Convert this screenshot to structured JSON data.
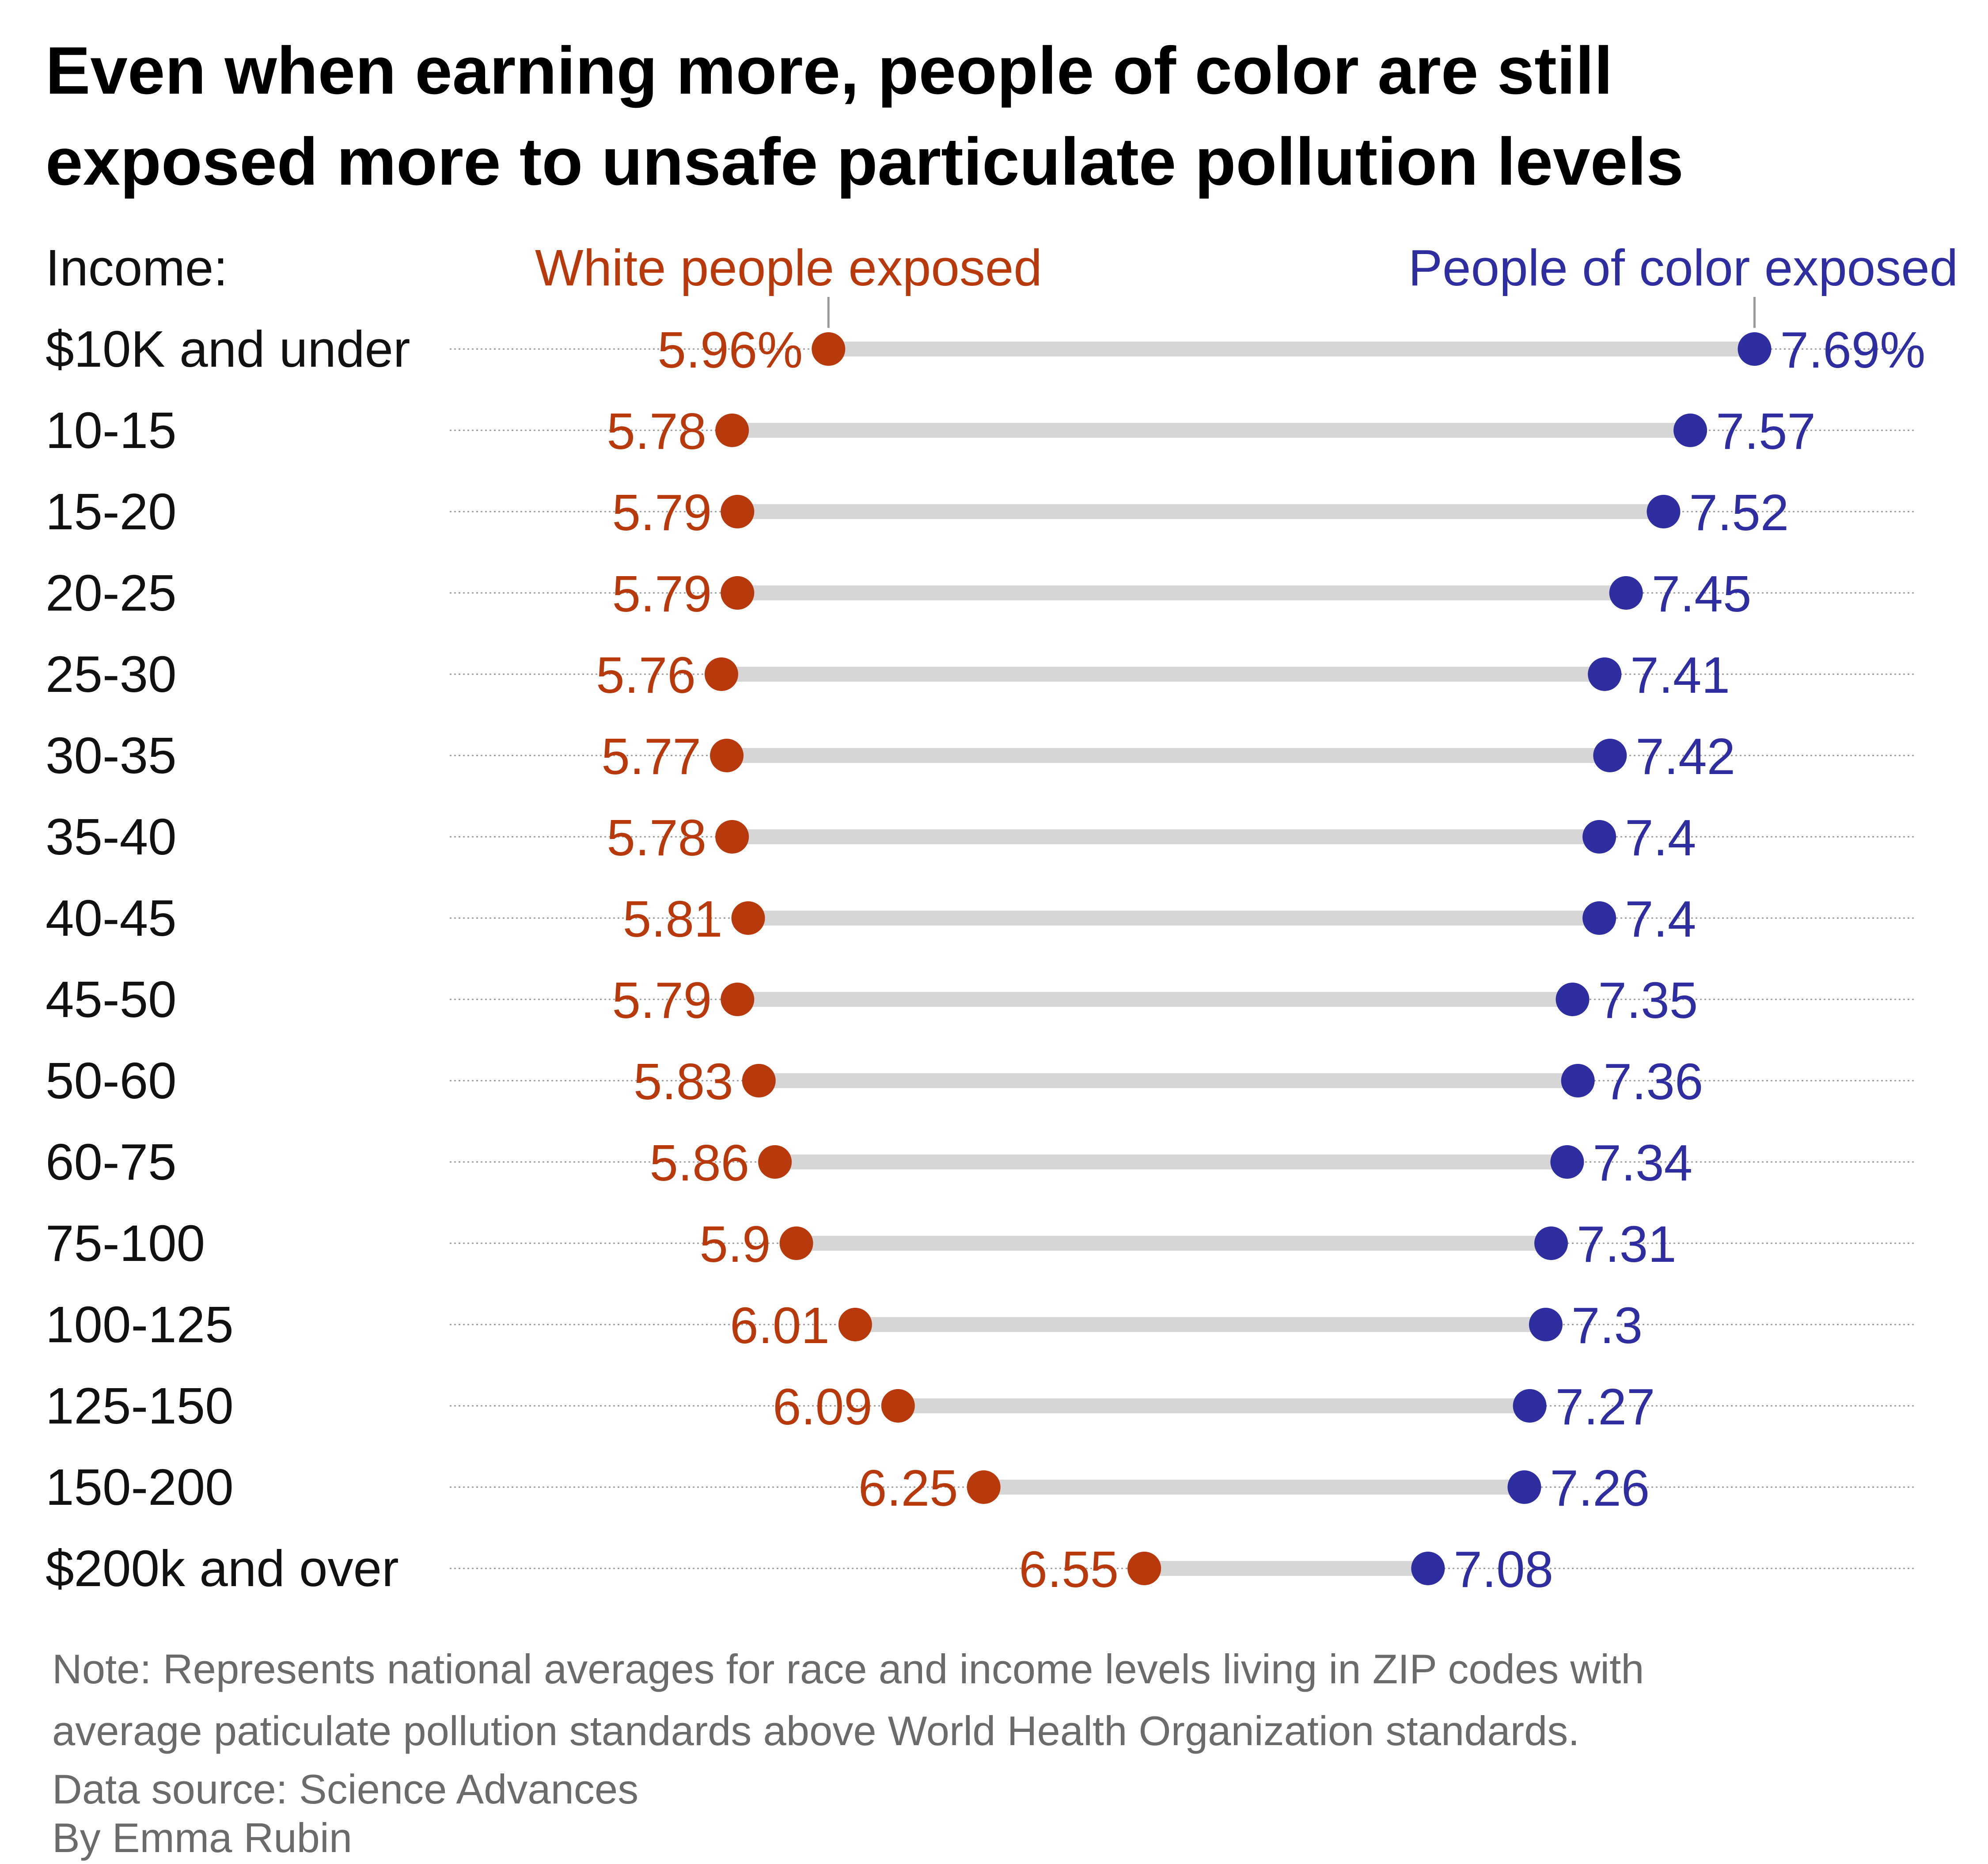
{
  "title": {
    "line1": "Even when earning more, people of color are still",
    "line2": "exposed more to unsafe particulate pollution levels"
  },
  "legend": {
    "category_header": "Income:",
    "white_label": "White people exposed",
    "poc_label": "People of color exposed"
  },
  "colors": {
    "white": "#b83a0c",
    "poc": "#2e2ea0",
    "connector": "#d6d6d6",
    "gridline": "#9a9a9a"
  },
  "chart_data": {
    "type": "dumbbell",
    "unit": "%",
    "categories": [
      "$10K and under",
      "10-15",
      "15-20",
      "20-25",
      "25-30",
      "30-35",
      "35-40",
      "40-45",
      "45-50",
      "50-60",
      "60-75",
      "75-100",
      "100-125",
      "125-150",
      "150-200",
      "$200k and over"
    ],
    "series": [
      {
        "name": "White people exposed",
        "values": [
          5.96,
          5.78,
          5.79,
          5.79,
          5.76,
          5.77,
          5.78,
          5.81,
          5.79,
          5.83,
          5.86,
          5.9,
          6.01,
          6.09,
          6.25,
          6.55
        ],
        "labels": [
          "5.96%",
          "5.78",
          "5.79",
          "5.79",
          "5.76",
          "5.77",
          "5.78",
          "5.81",
          "5.79",
          "5.83",
          "5.86",
          "5.9",
          "6.01",
          "6.09",
          "6.25",
          "6.55"
        ]
      },
      {
        "name": "People of color exposed",
        "values": [
          7.69,
          7.57,
          7.52,
          7.45,
          7.41,
          7.42,
          7.4,
          7.4,
          7.35,
          7.36,
          7.34,
          7.31,
          7.3,
          7.27,
          7.26,
          7.08
        ],
        "labels": [
          "7.69%",
          "7.57",
          "7.52",
          "7.45",
          "7.41",
          "7.42",
          "7.4",
          "7.4",
          "7.35",
          "7.36",
          "7.34",
          "7.31",
          "7.3",
          "7.27",
          "7.26",
          "7.08"
        ]
      }
    ],
    "xlim": [
      5.25,
      7.99
    ],
    "grid": true,
    "legend_position": "top"
  },
  "notes": {
    "line1": "Note: Represents national averages for race and income levels living in ZIP codes with",
    "line2": "average paticulate pollution standards above World Health Organization standards.",
    "source": "Data source: Science Advances",
    "byline": "By Emma Rubin"
  }
}
